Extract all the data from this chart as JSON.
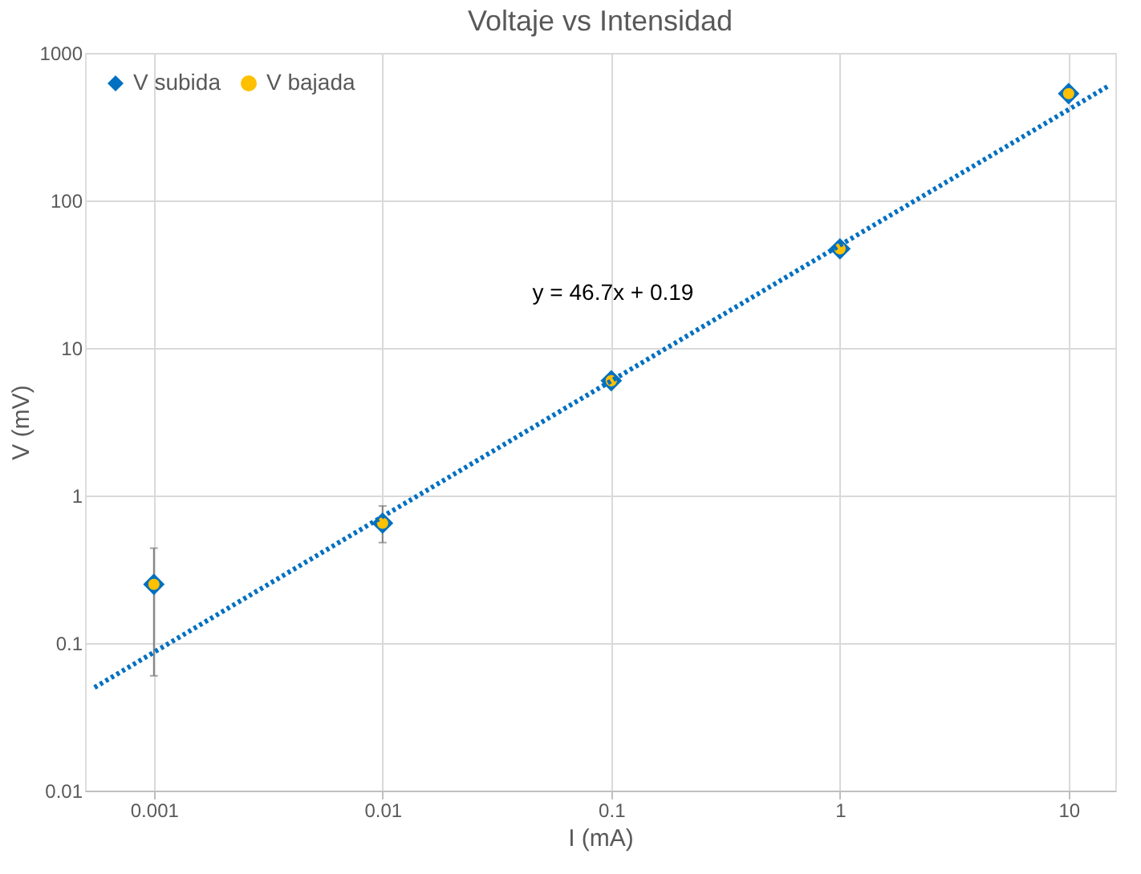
{
  "chart_data": {
    "type": "scatter",
    "title": "Voltaje vs Intensidad",
    "xlabel": "I (mA)",
    "ylabel": "V (mV)",
    "log": "xy",
    "grid": true,
    "legend": "top left",
    "x": [
      0.001,
      0.01,
      0.1,
      1,
      10
    ],
    "series": [
      {
        "name": "V subida",
        "color": "#0070c0",
        "marker": "diamond",
        "values": [
          0.25,
          0.65,
          6,
          47,
          530
        ],
        "errors": [
          [
            0.06,
            0.44
          ],
          [
            0.48,
            0.85
          ],
          null,
          null,
          null
        ]
      },
      {
        "name": "V bajada",
        "color": "#ffc000",
        "marker": "circle",
        "values": [
          0.25,
          0.65,
          6,
          47,
          530
        ]
      },
      {
        "type": "line",
        "color": "#0070c0",
        "line_style": "dotted",
        "marker": "none",
        "x": [
          0.00055,
          15
        ],
        "values": [
          0.05,
          600
        ]
      }
    ],
    "annotations": [
      "y = 46.7x + 0.19"
    ],
    "xlim": [
      0.0005,
      16
    ],
    "xticks": [
      0.001,
      0.01,
      0.1,
      1,
      10
    ],
    "ylim": [
      0.01,
      1000
    ],
    "yticks": [
      0.01,
      0.1,
      1,
      10,
      100,
      1000
    ]
  }
}
